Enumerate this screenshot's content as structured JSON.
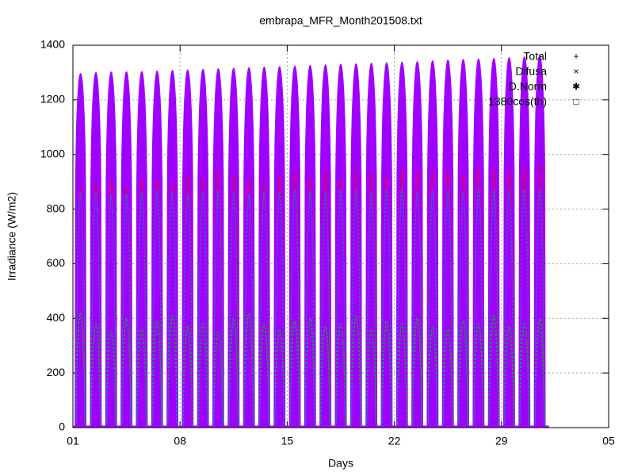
{
  "chart_data": {
    "type": "line",
    "title": "embrapa_MFR_Month201508.txt",
    "xlabel": "Days",
    "ylabel": "Irradiance (W/m2)",
    "x": [
      0.5,
      1.5,
      2.5,
      3.5,
      4.5,
      5.5,
      6.5,
      7.5,
      8.5,
      9.5,
      10.5,
      11.5,
      12.5,
      13.5,
      14.5,
      15.5,
      16.5,
      17.5,
      18.5,
      19.5,
      20.5,
      21.5,
      22.5,
      23.5,
      24.5,
      25.5,
      26.5,
      27.5,
      28.5,
      29.5,
      30.5
    ],
    "series": [
      {
        "name": "Total",
        "color": "#ff0000",
        "values": [
          880,
          890,
          900,
          880,
          910,
          900,
          890,
          920,
          910,
          930,
          915,
          900,
          890,
          925,
          930,
          910,
          935,
          900,
          940,
          930,
          920,
          945,
          935,
          930,
          940,
          925,
          950,
          945,
          940,
          955,
          960
        ]
      },
      {
        "name": "Difusa",
        "color": "#00c000",
        "values": [
          420,
          380,
          350,
          400,
          360,
          390,
          410,
          370,
          380,
          350,
          400,
          420,
          380,
          360,
          390,
          400,
          370,
          380,
          410,
          360,
          390,
          380,
          400,
          370,
          360,
          390,
          380,
          410,
          370,
          380,
          400
        ]
      },
      {
        "name": "D.Norm",
        "color": "#0080ff",
        "values": [
          860,
          860,
          850,
          855,
          860,
          865,
          860,
          850,
          860,
          870,
          860,
          855,
          865,
          860,
          870,
          865,
          860,
          870,
          865,
          860,
          870,
          875,
          860,
          865,
          870,
          860,
          875,
          870,
          865,
          870,
          875
        ]
      },
      {
        "name": "1380cos(th)",
        "color": "#a000ff",
        "values": [
          1297,
          1300,
          1302,
          1303,
          1304,
          1306,
          1308,
          1310,
          1312,
          1314,
          1316,
          1318,
          1320,
          1322,
          1324,
          1326,
          1328,
          1330,
          1332,
          1334,
          1336,
          1338,
          1340,
          1343,
          1346,
          1348,
          1350,
          1352,
          1355,
          1358,
          1362
        ]
      }
    ],
    "xlim": [
      0,
      35
    ],
    "xticks": [
      {
        "value": 0,
        "label": "01"
      },
      {
        "value": 7,
        "label": "08"
      },
      {
        "value": 14,
        "label": "15"
      },
      {
        "value": 21,
        "label": "22"
      },
      {
        "value": 28,
        "label": "29"
      },
      {
        "value": 35,
        "label": "05"
      }
    ],
    "ylim": [
      0,
      1400
    ],
    "yticks": [
      0,
      200,
      400,
      600,
      800,
      1000,
      1200,
      1400
    ],
    "grid": true,
    "legend": "top-right"
  }
}
